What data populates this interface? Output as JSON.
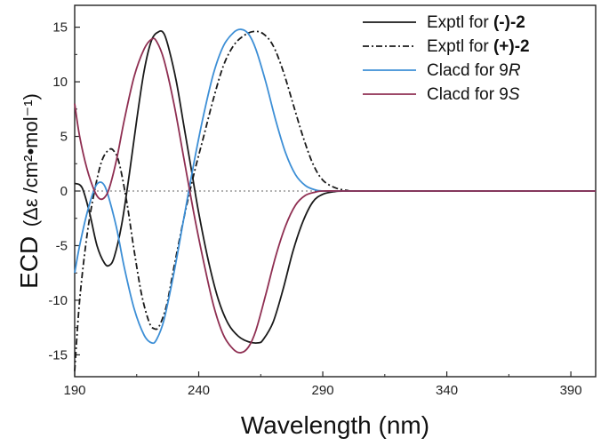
{
  "chart_data": {
    "type": "line",
    "xlabel": "Wavelength (nm)",
    "ylabel_main": "ECD",
    "ylabel_units": "(Δε /cm²•mol⁻¹)",
    "xlim": [
      190,
      400
    ],
    "ylim": [
      -17,
      17
    ],
    "x_ticks": [
      190,
      240,
      290,
      340,
      390
    ],
    "y_ticks": [
      -15,
      -10,
      -5,
      0,
      5,
      10,
      15
    ],
    "grid": false,
    "zero_line": true,
    "legend_position": "top-right",
    "series": [
      {
        "name": "Exptl for (-)-2",
        "legend_prefix": "Exptl for ",
        "legend_suffix": "(-)-2",
        "color": "#1a1a1a",
        "dash": "solid",
        "points": [
          [
            190,
            0.7
          ],
          [
            193,
            0.3
          ],
          [
            196,
            -2.0
          ],
          [
            199,
            -5.0
          ],
          [
            202,
            -6.6
          ],
          [
            204,
            -6.8
          ],
          [
            206,
            -6.0
          ],
          [
            209,
            -3.0
          ],
          [
            212,
            1.5
          ],
          [
            215,
            6.5
          ],
          [
            218,
            11.0
          ],
          [
            221,
            13.8
          ],
          [
            224,
            14.6
          ],
          [
            226,
            14.4
          ],
          [
            228,
            13.0
          ],
          [
            231,
            10.0
          ],
          [
            234,
            6.0
          ],
          [
            237,
            2.0
          ],
          [
            240,
            -2.0
          ],
          [
            244,
            -6.5
          ],
          [
            248,
            -10.0
          ],
          [
            252,
            -12.2
          ],
          [
            256,
            -13.3
          ],
          [
            260,
            -13.8
          ],
          [
            264,
            -13.9
          ],
          [
            266,
            -13.6
          ],
          [
            270,
            -12.0
          ],
          [
            274,
            -9.0
          ],
          [
            278,
            -5.5
          ],
          [
            282,
            -2.8
          ],
          [
            286,
            -1.0
          ],
          [
            290,
            -0.3
          ],
          [
            295,
            -0.05
          ],
          [
            300,
            0
          ],
          [
            320,
            0
          ],
          [
            360,
            0
          ],
          [
            400,
            0
          ]
        ]
      },
      {
        "name": "Exptl for (+)-2",
        "legend_prefix": "Exptl for ",
        "legend_suffix": "(+)-2",
        "color": "#1a1a1a",
        "dash": "dashdot",
        "points": [
          [
            190,
            -16.5
          ],
          [
            192,
            -10.0
          ],
          [
            195,
            -4.0
          ],
          [
            198,
            0.0
          ],
          [
            201,
            2.8
          ],
          [
            204,
            3.8
          ],
          [
            206,
            3.6
          ],
          [
            208,
            2.5
          ],
          [
            211,
            -1.0
          ],
          [
            214,
            -5.5
          ],
          [
            217,
            -9.5
          ],
          [
            220,
            -12.0
          ],
          [
            222,
            -12.6
          ],
          [
            224,
            -12.4
          ],
          [
            227,
            -10.5
          ],
          [
            230,
            -7.0
          ],
          [
            234,
            -2.5
          ],
          [
            238,
            1.5
          ],
          [
            242,
            5.0
          ],
          [
            246,
            8.5
          ],
          [
            250,
            11.5
          ],
          [
            254,
            13.3
          ],
          [
            258,
            14.2
          ],
          [
            262,
            14.6
          ],
          [
            266,
            14.4
          ],
          [
            270,
            13.3
          ],
          [
            274,
            11.0
          ],
          [
            278,
            8.0
          ],
          [
            282,
            5.0
          ],
          [
            286,
            2.5
          ],
          [
            290,
            1.0
          ],
          [
            295,
            0.3
          ],
          [
            300,
            0.05
          ],
          [
            305,
            0
          ],
          [
            340,
            0
          ],
          [
            400,
            0
          ]
        ]
      },
      {
        "name": "Clacd for 9R",
        "legend_prefix": "Clacd for 9",
        "legend_suffix": "R",
        "color": "#3d8fd6",
        "dash": "solid",
        "points": [
          [
            190,
            -7.5
          ],
          [
            192,
            -5.0
          ],
          [
            195,
            -2.0
          ],
          [
            198,
            0.2
          ],
          [
            200,
            0.8
          ],
          [
            202,
            0.5
          ],
          [
            204,
            -0.8
          ],
          [
            207,
            -3.5
          ],
          [
            210,
            -7.0
          ],
          [
            214,
            -10.8
          ],
          [
            218,
            -13.2
          ],
          [
            221,
            -13.9
          ],
          [
            223,
            -13.6
          ],
          [
            226,
            -11.8
          ],
          [
            230,
            -7.5
          ],
          [
            234,
            -2.5
          ],
          [
            238,
            2.5
          ],
          [
            242,
            7.0
          ],
          [
            246,
            10.8
          ],
          [
            250,
            13.3
          ],
          [
            254,
            14.5
          ],
          [
            257,
            14.8
          ],
          [
            260,
            14.4
          ],
          [
            263,
            13.0
          ],
          [
            267,
            10.0
          ],
          [
            271,
            6.5
          ],
          [
            275,
            3.5
          ],
          [
            279,
            1.5
          ],
          [
            283,
            0.5
          ],
          [
            287,
            0.1
          ],
          [
            290,
            0
          ],
          [
            300,
            0
          ],
          [
            340,
            0
          ],
          [
            400,
            0
          ]
        ]
      },
      {
        "name": "Clacd for 9S",
        "legend_prefix": "Clacd for 9",
        "legend_suffix": "S",
        "color": "#8f2f52",
        "dash": "solid",
        "points": [
          [
            190,
            8.0
          ],
          [
            192,
            5.0
          ],
          [
            195,
            2.0
          ],
          [
            198,
            0.0
          ],
          [
            200,
            -0.7
          ],
          [
            202,
            -0.6
          ],
          [
            204,
            0.3
          ],
          [
            207,
            3.0
          ],
          [
            210,
            6.5
          ],
          [
            214,
            10.5
          ],
          [
            218,
            13.0
          ],
          [
            221,
            13.9
          ],
          [
            223,
            13.7
          ],
          [
            226,
            12.0
          ],
          [
            230,
            8.0
          ],
          [
            234,
            3.0
          ],
          [
            238,
            -2.0
          ],
          [
            242,
            -6.5
          ],
          [
            246,
            -10.5
          ],
          [
            250,
            -13.2
          ],
          [
            254,
            -14.5
          ],
          [
            257,
            -14.8
          ],
          [
            260,
            -14.3
          ],
          [
            263,
            -12.8
          ],
          [
            267,
            -9.5
          ],
          [
            271,
            -6.0
          ],
          [
            275,
            -3.2
          ],
          [
            279,
            -1.3
          ],
          [
            283,
            -0.4
          ],
          [
            287,
            -0.1
          ],
          [
            290,
            0
          ],
          [
            300,
            0
          ],
          [
            340,
            0
          ],
          [
            400,
            0
          ]
        ]
      }
    ]
  }
}
